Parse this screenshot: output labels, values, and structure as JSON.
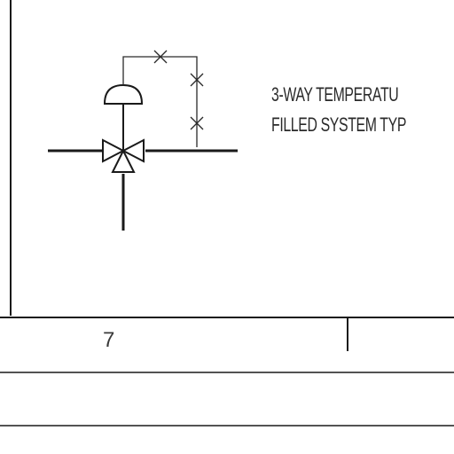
{
  "description": {
    "line1": "3-WAY TEMPERATU",
    "line2": "FILLED SYSTEM TYP"
  },
  "title_block": {
    "cell_number": "7"
  },
  "colors": {
    "ink": "#2a2a2a",
    "paper": "#ffffff"
  },
  "symbols": {
    "valve": "three-way-valve-symbol",
    "actuator": "temperature-actuator-dome-symbol",
    "capillary": "capillary-tube-line"
  }
}
